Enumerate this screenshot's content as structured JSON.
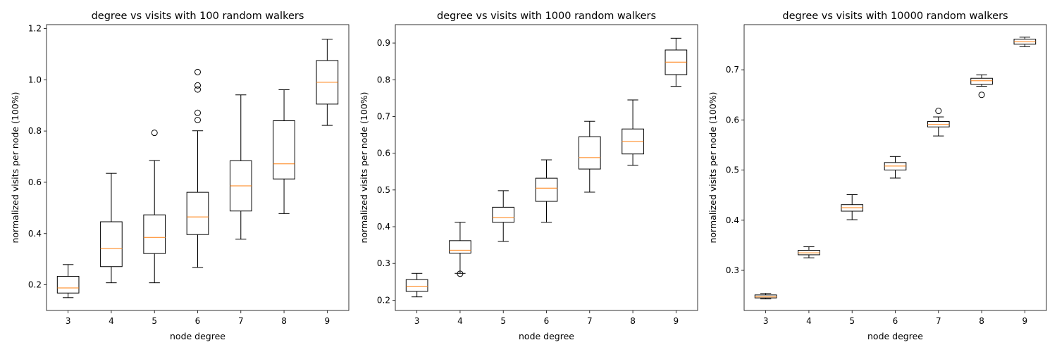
{
  "chart_data": [
    {
      "type": "box",
      "title": "degree vs visits with 100 random walkers",
      "xlabel": "node degree",
      "ylabel": "normalized visits per node (100%)",
      "categories": [
        "3",
        "4",
        "5",
        "6",
        "7",
        "8",
        "9"
      ],
      "ylim": [
        0.1,
        1.215
      ],
      "yticks": [
        0.2,
        0.4,
        0.6,
        0.8,
        1.0,
        1.2
      ],
      "ytick_labels": [
        "0.2",
        "0.4",
        "0.6",
        "0.8",
        "1.0",
        "1.2"
      ],
      "boxes": [
        {
          "whislo": 0.15,
          "q1": 0.168,
          "med": 0.188,
          "q3": 0.233,
          "whishi": 0.279,
          "fliers": []
        },
        {
          "whislo": 0.208,
          "q1": 0.271,
          "med": 0.342,
          "q3": 0.446,
          "whishi": 0.635,
          "fliers": []
        },
        {
          "whislo": 0.208,
          "q1": 0.322,
          "med": 0.385,
          "q3": 0.473,
          "whishi": 0.685,
          "fliers": [
            0.793
          ]
        },
        {
          "whislo": 0.268,
          "q1": 0.396,
          "med": 0.465,
          "q3": 0.561,
          "whishi": 0.801,
          "fliers": [
            0.843,
            0.871,
            0.962,
            0.978,
            1.03
          ]
        },
        {
          "whislo": 0.378,
          "q1": 0.488,
          "med": 0.586,
          "q3": 0.684,
          "whishi": 0.941,
          "fliers": []
        },
        {
          "whislo": 0.478,
          "q1": 0.613,
          "med": 0.672,
          "q3": 0.84,
          "whishi": 0.961,
          "fliers": []
        },
        {
          "whislo": 0.822,
          "q1": 0.905,
          "med": 0.99,
          "q3": 1.075,
          "whishi": 1.158,
          "fliers": []
        }
      ]
    },
    {
      "type": "box",
      "title": "degree vs visits with 1000 random walkers",
      "xlabel": "node degree",
      "ylabel": "normalized visits per node (100%)",
      "categories": [
        "3",
        "4",
        "5",
        "6",
        "7",
        "8",
        "9"
      ],
      "ylim": [
        0.172,
        0.95
      ],
      "yticks": [
        0.2,
        0.3,
        0.4,
        0.5,
        0.6,
        0.7,
        0.8,
        0.9
      ],
      "ytick_labels": [
        "0.2",
        "0.3",
        "0.4",
        "0.5",
        "0.6",
        "0.7",
        "0.8",
        "0.9"
      ],
      "boxes": [
        {
          "whislo": 0.209,
          "q1": 0.224,
          "med": 0.238,
          "q3": 0.256,
          "whishi": 0.273,
          "fliers": []
        },
        {
          "whislo": 0.273,
          "q1": 0.328,
          "med": 0.336,
          "q3": 0.362,
          "whishi": 0.412,
          "fliers": [
            0.272
          ]
        },
        {
          "whislo": 0.36,
          "q1": 0.412,
          "med": 0.425,
          "q3": 0.453,
          "whishi": 0.498,
          "fliers": []
        },
        {
          "whislo": 0.412,
          "q1": 0.469,
          "med": 0.505,
          "q3": 0.532,
          "whishi": 0.582,
          "fliers": []
        },
        {
          "whislo": 0.494,
          "q1": 0.557,
          "med": 0.588,
          "q3": 0.645,
          "whishi": 0.687,
          "fliers": []
        },
        {
          "whislo": 0.567,
          "q1": 0.598,
          "med": 0.632,
          "q3": 0.666,
          "whishi": 0.745,
          "fliers": []
        },
        {
          "whislo": 0.782,
          "q1": 0.814,
          "med": 0.848,
          "q3": 0.881,
          "whishi": 0.913,
          "fliers": []
        }
      ]
    },
    {
      "type": "box",
      "title": "degree vs visits with 10000 random walkers",
      "xlabel": "node degree",
      "ylabel": "normalized visits per node (100%)",
      "categories": [
        "3",
        "4",
        "5",
        "6",
        "7",
        "8",
        "9"
      ],
      "ylim": [
        0.22,
        0.79
      ],
      "yticks": [
        0.3,
        0.4,
        0.5,
        0.6,
        0.7
      ],
      "ytick_labels": [
        "0.3",
        "0.4",
        "0.5",
        "0.6",
        "0.7"
      ],
      "boxes": [
        {
          "whislo": 0.243,
          "q1": 0.245,
          "med": 0.247,
          "q3": 0.251,
          "whishi": 0.254,
          "fliers": []
        },
        {
          "whislo": 0.325,
          "q1": 0.331,
          "med": 0.335,
          "q3": 0.34,
          "whishi": 0.347,
          "fliers": []
        },
        {
          "whislo": 0.401,
          "q1": 0.418,
          "med": 0.425,
          "q3": 0.431,
          "whishi": 0.451,
          "fliers": []
        },
        {
          "whislo": 0.484,
          "q1": 0.5,
          "med": 0.508,
          "q3": 0.515,
          "whishi": 0.527,
          "fliers": []
        },
        {
          "whislo": 0.568,
          "q1": 0.586,
          "med": 0.591,
          "q3": 0.597,
          "whishi": 0.606,
          "fliers": [
            0.618
          ]
        },
        {
          "whislo": 0.667,
          "q1": 0.671,
          "med": 0.678,
          "q3": 0.683,
          "whishi": 0.69,
          "fliers": [
            0.65
          ]
        },
        {
          "whislo": 0.746,
          "q1": 0.751,
          "med": 0.756,
          "q3": 0.761,
          "whishi": 0.765,
          "fliers": []
        }
      ]
    }
  ],
  "colors": {
    "box": "#000000",
    "median": "#ff7f0e",
    "flier": "#000000"
  }
}
